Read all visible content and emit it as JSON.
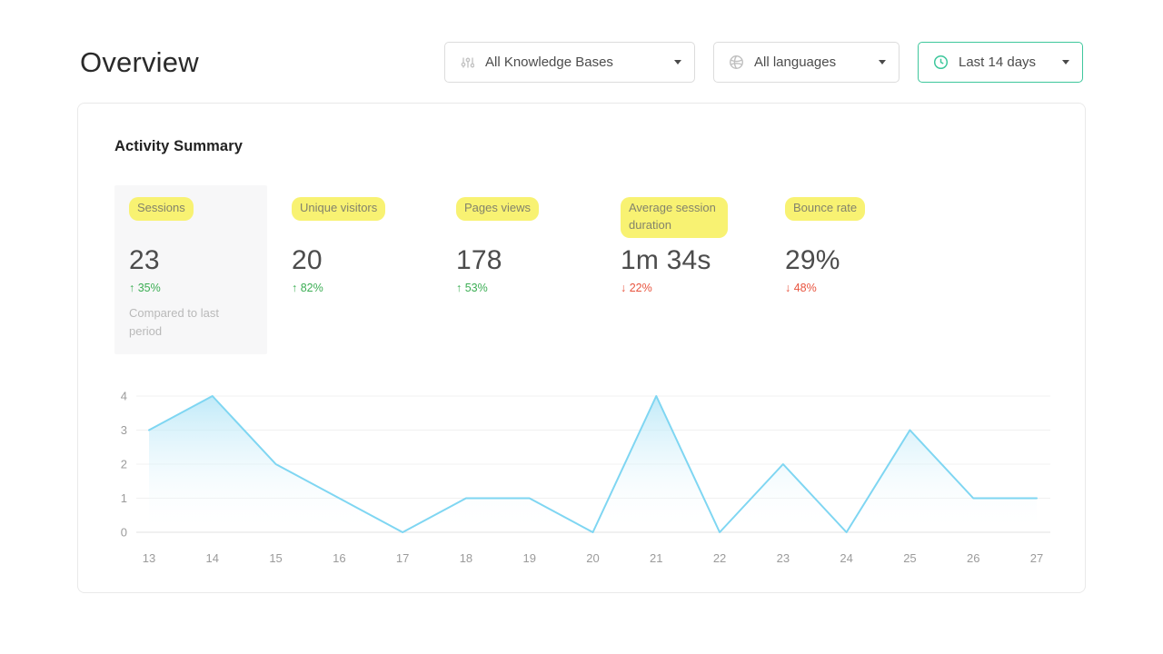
{
  "page": {
    "title": "Overview"
  },
  "filters": {
    "knowledge_bases": {
      "value": "All Knowledge Bases"
    },
    "languages": {
      "value": "All languages"
    },
    "date_range": {
      "value": "Last 14 days",
      "accent_color": "#3ec79c"
    }
  },
  "card": {
    "title": "Activity Summary"
  },
  "metrics": [
    {
      "label": "Sessions",
      "value": "23",
      "delta": "↑ 35%",
      "trend": "up",
      "note": "Compared to last period"
    },
    {
      "label": "Unique visitors",
      "value": "20",
      "delta": "↑ 82%",
      "trend": "up"
    },
    {
      "label": "Pages views",
      "value": "178",
      "delta": "↑ 53%",
      "trend": "up"
    },
    {
      "label": "Average session duration",
      "value": "1m 34s",
      "delta": "↓ 22%",
      "trend": "down"
    },
    {
      "label": "Bounce rate",
      "value": "29%",
      "delta": "↓ 48%",
      "trend": "down"
    }
  ],
  "colors": {
    "up": "#3cae54",
    "down": "#e8543f",
    "highlight": "#f8f272",
    "line": "#7fd6f2",
    "fill_top": "#b5e6f7"
  },
  "chart_data": {
    "type": "area",
    "title": "",
    "xlabel": "",
    "ylabel": "",
    "x": [
      13,
      14,
      15,
      16,
      17,
      18,
      19,
      20,
      21,
      22,
      23,
      24,
      25,
      26,
      27
    ],
    "values": [
      3,
      4,
      2,
      1,
      0,
      1,
      1,
      0,
      4,
      0,
      2,
      0,
      3,
      1,
      1
    ],
    "ylim": [
      0,
      4
    ],
    "yticks": [
      0,
      1,
      2,
      3,
      4
    ],
    "grid": true,
    "legend": "none"
  }
}
